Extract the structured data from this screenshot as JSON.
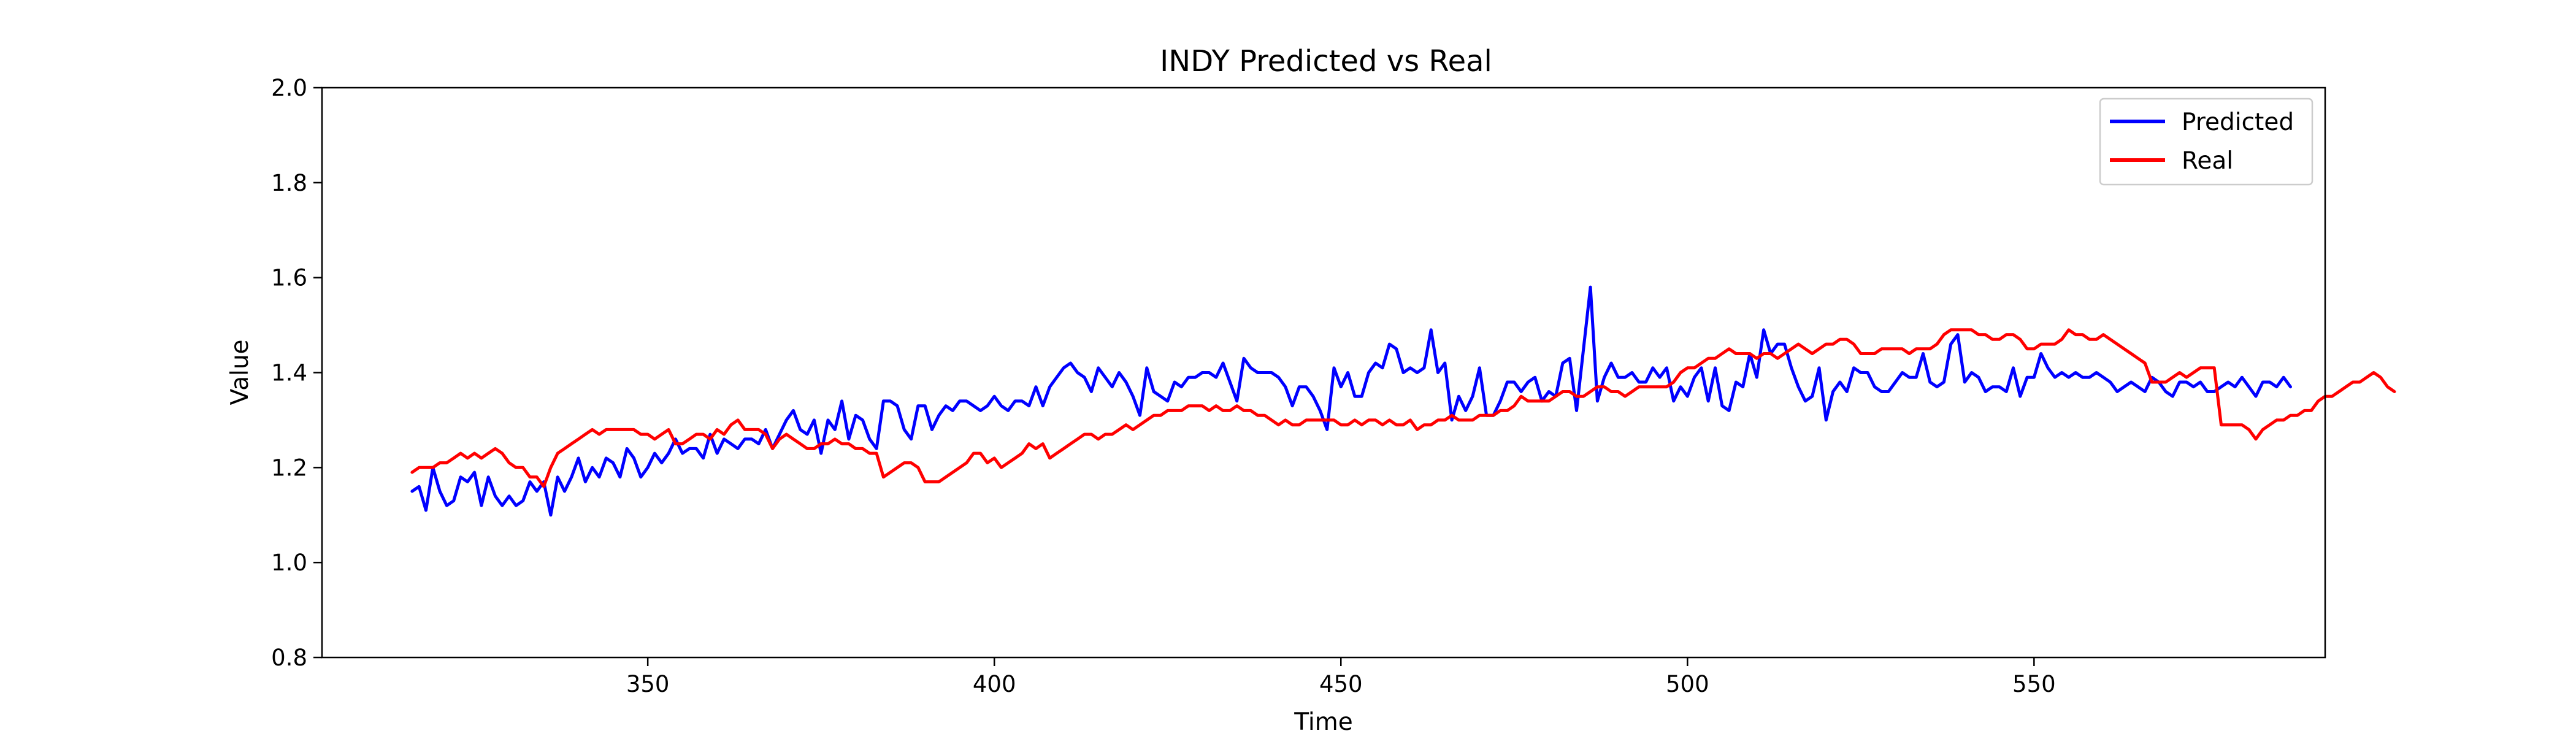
{
  "chart_data": {
    "type": "line",
    "title": "INDY Predicted vs Real",
    "xlabel": "Time",
    "ylabel": "Value",
    "xlim": [
      303,
      592
    ],
    "ylim": [
      0.8,
      2.0
    ],
    "xticks": [
      350,
      400,
      450,
      500,
      550
    ],
    "yticks": [
      "0.8",
      "1.0",
      "1.2",
      "1.4",
      "1.6",
      "1.8",
      "2.0"
    ],
    "legend_position": "top-right",
    "grid": false,
    "series": [
      {
        "name": "Predicted",
        "color": "#0000ff",
        "x_start": 316,
        "values": [
          1.15,
          1.16,
          1.11,
          1.2,
          1.15,
          1.12,
          1.13,
          1.18,
          1.17,
          1.19,
          1.12,
          1.18,
          1.14,
          1.12,
          1.14,
          1.12,
          1.13,
          1.17,
          1.15,
          1.17,
          1.1,
          1.18,
          1.15,
          1.18,
          1.22,
          1.17,
          1.2,
          1.18,
          1.22,
          1.21,
          1.18,
          1.24,
          1.22,
          1.18,
          1.2,
          1.23,
          1.21,
          1.23,
          1.26,
          1.23,
          1.24,
          1.24,
          1.22,
          1.27,
          1.23,
          1.26,
          1.25,
          1.24,
          1.26,
          1.26,
          1.25,
          1.28,
          1.24,
          1.27,
          1.3,
          1.32,
          1.28,
          1.27,
          1.3,
          1.23,
          1.3,
          1.28,
          1.34,
          1.26,
          1.31,
          1.3,
          1.26,
          1.24,
          1.34,
          1.34,
          1.33,
          1.28,
          1.26,
          1.33,
          1.33,
          1.28,
          1.31,
          1.33,
          1.32,
          1.34,
          1.34,
          1.33,
          1.32,
          1.33,
          1.35,
          1.33,
          1.32,
          1.34,
          1.34,
          1.33,
          1.37,
          1.33,
          1.37,
          1.39,
          1.41,
          1.42,
          1.4,
          1.39,
          1.36,
          1.41,
          1.39,
          1.37,
          1.4,
          1.38,
          1.35,
          1.31,
          1.41,
          1.36,
          1.35,
          1.34,
          1.38,
          1.37,
          1.39,
          1.39,
          1.4,
          1.4,
          1.39,
          1.42,
          1.38,
          1.34,
          1.43,
          1.41,
          1.4,
          1.4,
          1.4,
          1.39,
          1.37,
          1.33,
          1.37,
          1.37,
          1.35,
          1.32,
          1.28,
          1.41,
          1.37,
          1.4,
          1.35,
          1.35,
          1.4,
          1.42,
          1.41,
          1.46,
          1.45,
          1.4,
          1.41,
          1.4,
          1.41,
          1.49,
          1.4,
          1.42,
          1.3,
          1.35,
          1.32,
          1.35,
          1.41,
          1.31,
          1.31,
          1.34,
          1.38,
          1.38,
          1.36,
          1.38,
          1.39,
          1.34,
          1.36,
          1.35,
          1.42,
          1.43,
          1.32,
          1.45,
          1.58,
          1.34,
          1.39,
          1.42,
          1.39,
          1.39,
          1.4,
          1.38,
          1.38,
          1.41,
          1.39,
          1.41,
          1.34,
          1.37,
          1.35,
          1.39,
          1.41,
          1.34,
          1.41,
          1.33,
          1.32,
          1.38,
          1.37,
          1.44,
          1.39,
          1.49,
          1.44,
          1.46,
          1.46,
          1.41,
          1.37,
          1.34,
          1.35,
          1.41,
          1.3,
          1.36,
          1.38,
          1.36,
          1.41,
          1.4,
          1.4,
          1.37,
          1.36,
          1.36,
          1.38,
          1.4,
          1.39,
          1.39,
          1.44,
          1.38,
          1.37,
          1.38,
          1.46,
          1.48,
          1.38,
          1.4,
          1.39,
          1.36,
          1.37,
          1.37,
          1.36,
          1.41,
          1.35,
          1.39,
          1.39,
          1.44,
          1.41,
          1.39,
          1.4,
          1.39,
          1.4,
          1.39,
          1.39,
          1.4,
          1.39,
          1.38,
          1.36,
          1.37,
          1.38,
          1.37,
          1.36,
          1.39,
          1.38,
          1.36,
          1.35,
          1.38,
          1.38,
          1.37,
          1.38,
          1.36,
          1.36,
          1.37,
          1.38,
          1.37,
          1.39,
          1.37,
          1.35,
          1.38,
          1.38,
          1.37,
          1.39,
          1.37
        ],
        "value_precision": 2
      },
      {
        "name": "Real",
        "color": "#ff0000",
        "x_start": 316,
        "values": [
          1.19,
          1.2,
          1.2,
          1.2,
          1.21,
          1.21,
          1.22,
          1.23,
          1.22,
          1.23,
          1.22,
          1.23,
          1.24,
          1.23,
          1.21,
          1.2,
          1.2,
          1.18,
          1.18,
          1.16,
          1.2,
          1.23,
          1.24,
          1.25,
          1.26,
          1.27,
          1.28,
          1.27,
          1.28,
          1.28,
          1.28,
          1.28,
          1.28,
          1.27,
          1.27,
          1.26,
          1.27,
          1.28,
          1.25,
          1.25,
          1.26,
          1.27,
          1.27,
          1.26,
          1.28,
          1.27,
          1.29,
          1.3,
          1.28,
          1.28,
          1.28,
          1.27,
          1.24,
          1.26,
          1.27,
          1.26,
          1.25,
          1.24,
          1.24,
          1.25,
          1.25,
          1.26,
          1.25,
          1.25,
          1.24,
          1.24,
          1.23,
          1.23,
          1.18,
          1.19,
          1.2,
          1.21,
          1.21,
          1.2,
          1.17,
          1.17,
          1.17,
          1.18,
          1.19,
          1.2,
          1.21,
          1.23,
          1.23,
          1.21,
          1.22,
          1.2,
          1.21,
          1.22,
          1.23,
          1.25,
          1.24,
          1.25,
          1.22,
          1.23,
          1.24,
          1.25,
          1.26,
          1.27,
          1.27,
          1.26,
          1.27,
          1.27,
          1.28,
          1.29,
          1.28,
          1.29,
          1.3,
          1.31,
          1.31,
          1.32,
          1.32,
          1.32,
          1.33,
          1.33,
          1.33,
          1.32,
          1.33,
          1.32,
          1.32,
          1.33,
          1.32,
          1.32,
          1.31,
          1.31,
          1.3,
          1.29,
          1.3,
          1.29,
          1.29,
          1.3,
          1.3,
          1.3,
          1.3,
          1.3,
          1.29,
          1.29,
          1.3,
          1.29,
          1.3,
          1.3,
          1.29,
          1.3,
          1.29,
          1.29,
          1.3,
          1.28,
          1.29,
          1.29,
          1.3,
          1.3,
          1.31,
          1.3,
          1.3,
          1.3,
          1.31,
          1.31,
          1.31,
          1.32,
          1.32,
          1.33,
          1.35,
          1.34,
          1.34,
          1.34,
          1.34,
          1.35,
          1.36,
          1.36,
          1.35,
          1.35,
          1.36,
          1.37,
          1.37,
          1.36,
          1.36,
          1.35,
          1.36,
          1.37,
          1.37,
          1.37,
          1.37,
          1.37,
          1.38,
          1.4,
          1.41,
          1.41,
          1.42,
          1.43,
          1.43,
          1.44,
          1.45,
          1.44,
          1.44,
          1.44,
          1.43,
          1.44,
          1.44,
          1.43,
          1.44,
          1.45,
          1.46,
          1.45,
          1.44,
          1.45,
          1.46,
          1.46,
          1.47,
          1.47,
          1.46,
          1.44,
          1.44,
          1.44,
          1.45,
          1.45,
          1.45,
          1.45,
          1.44,
          1.45,
          1.45,
          1.45,
          1.46,
          1.48,
          1.49,
          1.49,
          1.49,
          1.49,
          1.48,
          1.48,
          1.47,
          1.47,
          1.48,
          1.48,
          1.47,
          1.45,
          1.45,
          1.46,
          1.46,
          1.46,
          1.47,
          1.49,
          1.48,
          1.48,
          1.47,
          1.47,
          1.48,
          1.47,
          1.46,
          1.45,
          1.44,
          1.43,
          1.42,
          1.38,
          1.38,
          1.38,
          1.39,
          1.4,
          1.39,
          1.4,
          1.41,
          1.41,
          1.41,
          1.29,
          1.29,
          1.29,
          1.29,
          1.28,
          1.26,
          1.28,
          1.29,
          1.3,
          1.3,
          1.31,
          1.31,
          1.32,
          1.32,
          1.34,
          1.35,
          1.35,
          1.36,
          1.37,
          1.38,
          1.38,
          1.39,
          1.4,
          1.39,
          1.37,
          1.36
        ],
        "value_precision": 2
      }
    ]
  }
}
